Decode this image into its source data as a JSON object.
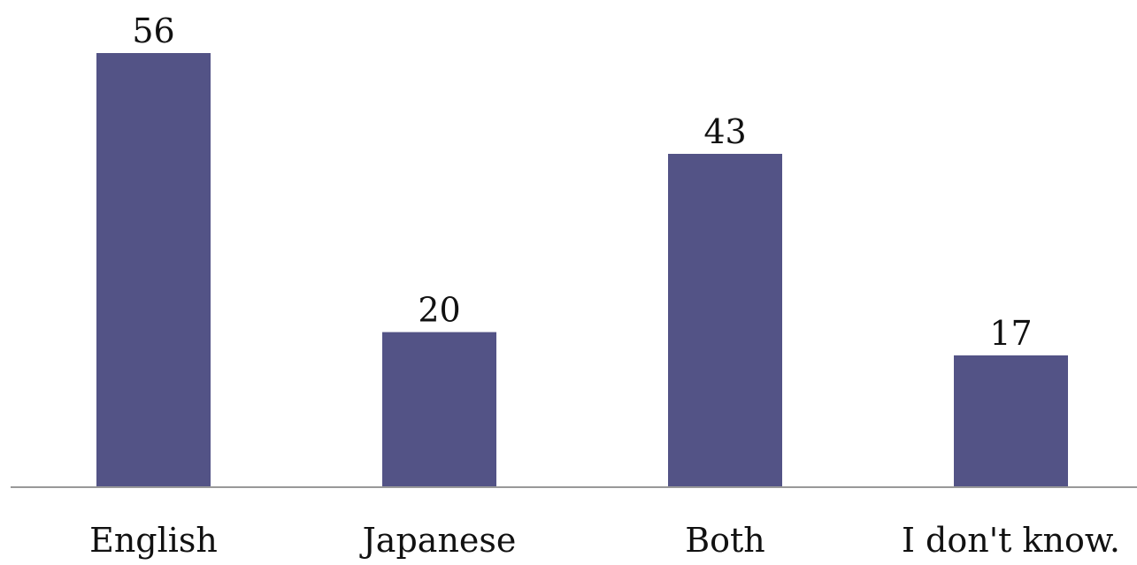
{
  "chart_data": {
    "type": "bar",
    "title": "",
    "xlabel": "",
    "ylabel": "",
    "categories": [
      "English",
      "Japanese",
      "Both",
      "I don't know."
    ],
    "values": [
      56,
      20,
      43,
      17
    ],
    "data_labels": [
      "56",
      "20",
      "43",
      "17"
    ],
    "ylim": [
      0,
      56
    ],
    "grid": false,
    "legend": "none",
    "colors": {
      "bar": "#535386",
      "axis": "#999999",
      "text": "#111111"
    }
  }
}
